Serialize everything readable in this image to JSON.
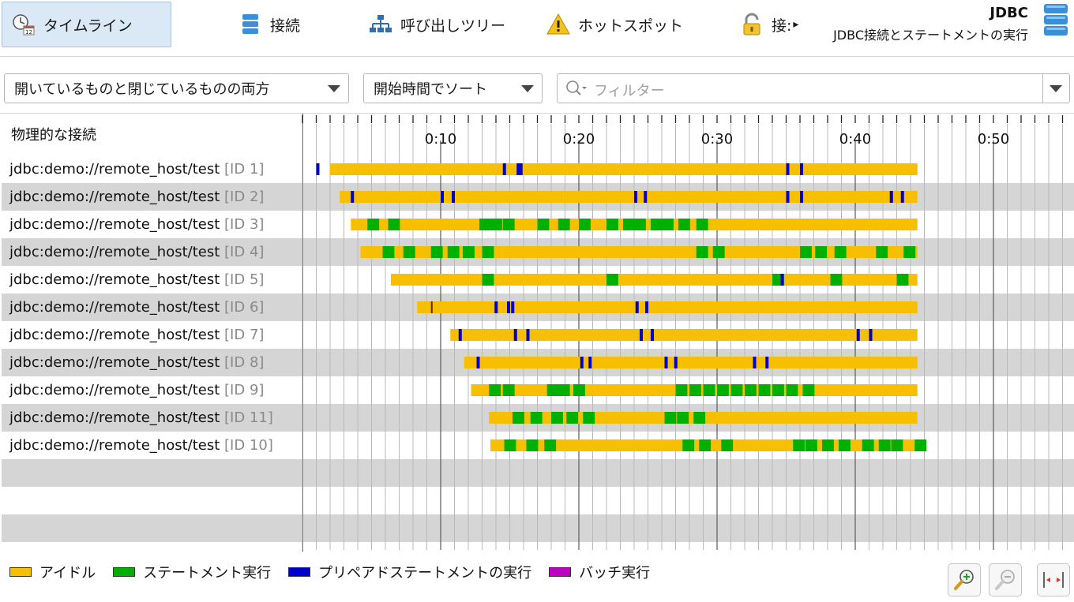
{
  "toolbar": {
    "tabs": [
      {
        "label": "タイムライン",
        "icon": "timeline-icon",
        "active": true
      },
      {
        "label": "接続",
        "icon": "database-icon",
        "active": false
      },
      {
        "label": "呼び出しツリー",
        "icon": "call-tree-icon",
        "active": false
      },
      {
        "label": "ホットスポット",
        "icon": "warning-icon",
        "active": false
      },
      {
        "label": "接:",
        "icon": "lock-icon",
        "active": false
      }
    ],
    "more_arrow": "▸",
    "view_title": "JDBC",
    "view_subtitle": "JDBC接続とステートメントの実行"
  },
  "filters": {
    "open_closed": "開いているものと閉じているものの両方",
    "sort": "開始時間でソート",
    "filter_placeholder": "フィルター"
  },
  "timeline": {
    "column_header": "物理的な接続",
    "tick_labels": [
      "0:10",
      "0:20",
      "0:30",
      "0:40",
      "0:50"
    ],
    "rows": [
      {
        "name": "jdbc:demo://remote_host/test",
        "id": "[ID 1]",
        "start": 2.0,
        "end": 44.5,
        "green": [],
        "blue": [
          1.0,
          14.5,
          15.5,
          15.7,
          35.0,
          36.0
        ]
      },
      {
        "name": "jdbc:demo://remote_host/test",
        "id": "[ID 2]",
        "start": 2.7,
        "end": 44.5,
        "green": [],
        "blue": [
          3.5,
          10.0,
          10.8,
          24.0,
          24.7,
          35.0,
          36.0,
          42.5,
          43.3
        ]
      },
      {
        "name": "jdbc:demo://remote_host/test",
        "id": "[ID 3]",
        "start": 3.5,
        "end": 44.5,
        "green": [
          4.7,
          6.2,
          12.8,
          13.6,
          14.5,
          17.0,
          18.5,
          20.0,
          22.0,
          23.2,
          24.0,
          25.2,
          26.0,
          27.2,
          28.5
        ],
        "blue": []
      },
      {
        "name": "jdbc:demo://remote_host/test",
        "id": "[ID 4]",
        "start": 4.2,
        "end": 44.5,
        "green": [
          5.8,
          7.3,
          9.3,
          10.5,
          11.6,
          13.0,
          28.5,
          29.7,
          36.0,
          37.1,
          38.5,
          41.5,
          43.5
        ],
        "blue": []
      },
      {
        "name": "jdbc:demo://remote_host/test",
        "id": "[ID 5]",
        "start": 6.4,
        "end": 44.5,
        "green": [
          13.0,
          22.0,
          34.0,
          38.2,
          43.0
        ],
        "blue": [
          34.6
        ]
      },
      {
        "name": "jdbc:demo://remote_host/test",
        "id": "[ID 6]",
        "start": 8.3,
        "end": 44.5,
        "green": [],
        "blue": [
          13.9,
          14.8,
          15.1,
          24.1,
          24.8
        ],
        "purple": [
          9.3
        ]
      },
      {
        "name": "jdbc:demo://remote_host/test",
        "id": "[ID 7]",
        "start": 10.7,
        "end": 44.5,
        "green": [],
        "blue": [
          11.3,
          15.3,
          16.2,
          24.4,
          25.2,
          40.1,
          41.0
        ]
      },
      {
        "name": "jdbc:demo://remote_host/test",
        "id": "[ID 8]",
        "start": 11.7,
        "end": 44.5,
        "green": [],
        "blue": [
          12.6,
          20.1,
          20.7,
          26.2,
          26.9,
          32.6,
          33.5
        ]
      },
      {
        "name": "jdbc:demo://remote_host/test",
        "id": "[ID 9]",
        "start": 12.2,
        "end": 44.5,
        "green": [
          13.5,
          14.5,
          17.7,
          18.5,
          19.6,
          27.0,
          28.0,
          29.0,
          30.0,
          31.0,
          32.0,
          33.0,
          34.0,
          35.0,
          36.2
        ],
        "blue": []
      },
      {
        "name": "jdbc:demo://remote_host/test",
        "id": "[ID 11]",
        "start": 13.5,
        "end": 44.5,
        "green": [
          15.2,
          16.5,
          18.0,
          19.1,
          20.3,
          26.2,
          27.1,
          28.3
        ],
        "blue": []
      },
      {
        "name": "jdbc:demo://remote_host/test",
        "id": "[ID 10]",
        "start": 13.6,
        "end": 44.5,
        "green": [
          14.6,
          16.2,
          17.5,
          27.5,
          28.7,
          30.3,
          35.5,
          36.4,
          37.6,
          38.8,
          40.5,
          41.7,
          42.6,
          44.3
        ],
        "blue": []
      }
    ],
    "empty_rows": 3,
    "time_max": 55
  },
  "legend": [
    {
      "label": "アイドル",
      "color": "#f6c000"
    },
    {
      "label": "ステートメント実行",
      "color": "#00b000"
    },
    {
      "label": "プリペアドステートメントの実行",
      "color": "#0000d0"
    },
    {
      "label": "バッチ実行",
      "color": "#c000c0"
    }
  ],
  "colors": {
    "idle": "#f6c000",
    "statement": "#00b000",
    "prepared": "#0000d0",
    "batch": "#c000c0",
    "row_stripe": "#d5d5d5",
    "active_tab": "#dbe8f5"
  },
  "zoom": {
    "zoom_in": "zoom-in-icon",
    "zoom_out": "zoom-out-icon",
    "fit": "fit-width-icon"
  }
}
